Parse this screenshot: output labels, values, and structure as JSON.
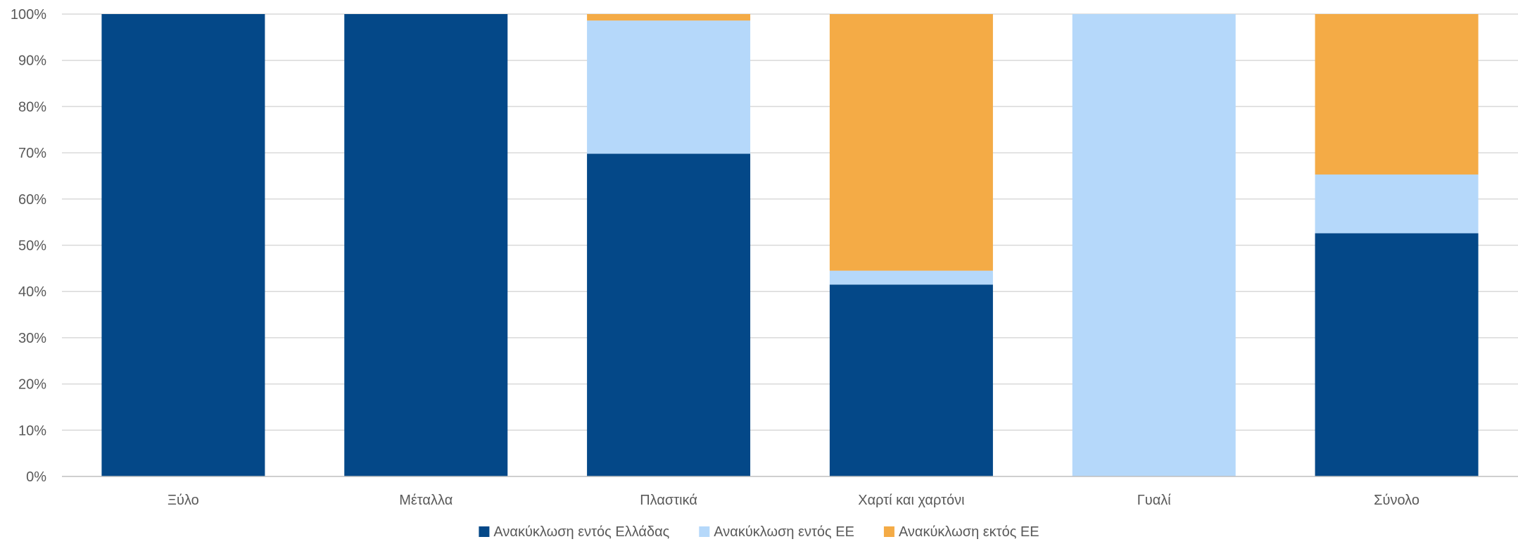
{
  "chart_data": {
    "type": "bar",
    "stacked": true,
    "categories": [
      "Ξύλο",
      "Μέταλλα",
      "Πλαστικά",
      "Χαρτί και χαρτόνι",
      "Γυαλί",
      "Σύνολο"
    ],
    "series": [
      {
        "name": "Ανακύκλωση εντός Ελλάδας",
        "color": "#044888",
        "values": [
          100,
          100,
          69.8,
          41.5,
          0,
          52.6
        ]
      },
      {
        "name": "Ανακύκλωση εντός ΕΕ",
        "color": "#b5d8fa",
        "values": [
          0,
          0,
          28.8,
          3.0,
          100,
          12.7
        ]
      },
      {
        "name": "Ανακύκλωση εκτός ΕΕ",
        "color": "#f4ab46",
        "values": [
          0,
          0,
          1.4,
          55.5,
          0,
          34.7
        ]
      }
    ],
    "y_ticks": [
      "0%",
      "10%",
      "20%",
      "30%",
      "40%",
      "50%",
      "60%",
      "70%",
      "80%",
      "90%",
      "100%"
    ],
    "ylim": [
      0,
      100
    ],
    "title": "",
    "xlabel": "",
    "ylabel": "",
    "grid": true,
    "legend_position": "bottom",
    "colors": {
      "grid": "#d9d9d9",
      "axis": "#bfbfbf",
      "text": "#595959"
    }
  }
}
